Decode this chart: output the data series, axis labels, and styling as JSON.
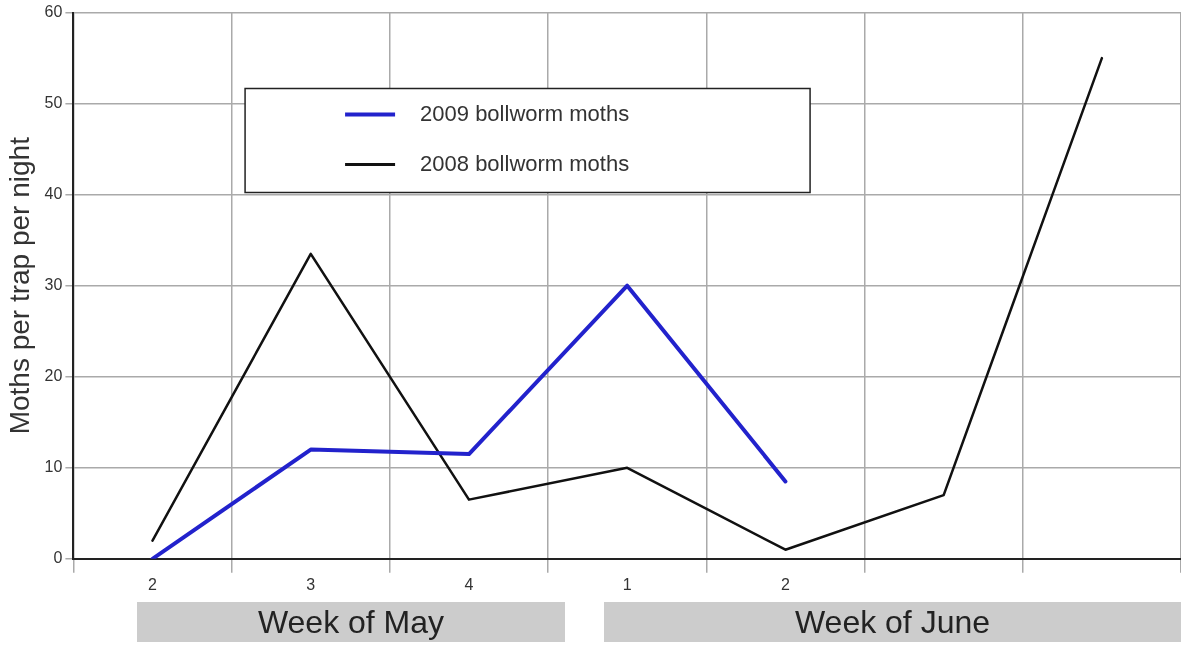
{
  "chart_data": {
    "type": "line",
    "ylabel": "Moths per trap per night",
    "categories": [
      "2",
      "3",
      "4",
      "1",
      "2",
      null,
      null
    ],
    "series": [
      {
        "name": "2009 bollworm moths",
        "color": "#2222cc",
        "values": [
          0,
          12,
          11.5,
          30,
          8.5,
          null,
          null
        ]
      },
      {
        "name": "2008 bollworm moths",
        "color": "#111111",
        "values": [
          2,
          33.5,
          6.5,
          10,
          1,
          7,
          55
        ]
      }
    ],
    "ylim": [
      0,
      60
    ],
    "yticks": [
      0,
      10,
      20,
      30,
      40,
      50,
      60
    ],
    "grid": true,
    "legend": "top",
    "marker": "none",
    "line_style": "solid",
    "annotations": [
      "Week of May",
      "Week of June"
    ]
  }
}
